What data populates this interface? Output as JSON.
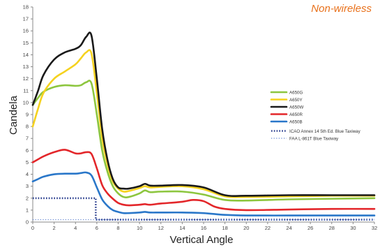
{
  "corner_label": "Non-wireless",
  "colors": {
    "axis": "#888888",
    "tick_text": "#444444",
    "label_text": "#222222",
    "corner_label": "#e8701a"
  },
  "chart_data": {
    "type": "line",
    "title": "",
    "xlabel": "Vertical Angle",
    "ylabel": "Candela",
    "xlim": [
      0,
      32
    ],
    "ylim": [
      0,
      18
    ],
    "xticks": [
      0,
      2,
      4,
      6,
      8,
      10,
      12,
      14,
      16,
      18,
      20,
      22,
      24,
      26,
      28,
      30,
      32
    ],
    "yticks": [
      0,
      1,
      2,
      3,
      4,
      5,
      6,
      7,
      8,
      9,
      10,
      11,
      12,
      13,
      14,
      15,
      16,
      17,
      18
    ],
    "grid": false,
    "legend_position": "right",
    "series": [
      {
        "name": "A650G",
        "color": "#8dc63f",
        "style": "solid",
        "x": [
          0,
          0.5,
          1,
          2,
          3,
          4,
          4.5,
          5,
          5.5,
          6,
          6.5,
          7,
          7.5,
          8,
          8.5,
          9,
          10,
          10.5,
          11,
          12,
          14,
          16,
          18,
          20,
          24,
          28,
          32
        ],
        "y": [
          9.8,
          10.4,
          10.9,
          11.3,
          11.45,
          11.4,
          11.45,
          11.7,
          11.6,
          9.0,
          6.0,
          4.2,
          3.0,
          2.4,
          2.1,
          2.1,
          2.4,
          2.65,
          2.5,
          2.55,
          2.55,
          2.3,
          1.85,
          1.8,
          1.9,
          1.95,
          2.0
        ]
      },
      {
        "name": "A650Y",
        "color": "#f5d21f",
        "style": "solid",
        "x": [
          0,
          0.5,
          1,
          2,
          3,
          4,
          4.5,
          5,
          5.5,
          6,
          6.5,
          7,
          7.5,
          8,
          8.5,
          9,
          10,
          10.5,
          11,
          12,
          14,
          16,
          18,
          20,
          24,
          28,
          32
        ],
        "y": [
          8.0,
          9.5,
          10.8,
          12.0,
          12.6,
          13.2,
          13.7,
          14.2,
          14.1,
          10.8,
          7.0,
          4.8,
          3.4,
          2.8,
          2.55,
          2.6,
          2.85,
          3.0,
          2.9,
          2.95,
          3.0,
          2.75,
          2.15,
          2.1,
          2.15,
          2.2,
          2.2
        ]
      },
      {
        "name": "A650W",
        "color": "#1a1a1a",
        "style": "solid",
        "x": [
          0,
          0.5,
          1,
          2,
          3,
          4,
          4.5,
          5,
          5.5,
          6,
          6.5,
          7,
          7.5,
          8,
          8.5,
          9,
          10,
          10.5,
          11,
          12,
          14,
          16,
          18,
          20,
          24,
          28,
          32
        ],
        "y": [
          9.8,
          11.0,
          12.3,
          13.6,
          14.2,
          14.5,
          14.8,
          15.5,
          15.6,
          12.0,
          7.8,
          5.2,
          3.6,
          2.9,
          2.8,
          2.8,
          3.0,
          3.2,
          3.05,
          3.05,
          3.1,
          2.9,
          2.25,
          2.2,
          2.25,
          2.25,
          2.25
        ]
      },
      {
        "name": "A650R",
        "color": "#e3262a",
        "style": "solid",
        "x": [
          0,
          0.5,
          1,
          2,
          3,
          4,
          4.5,
          5,
          5.5,
          6,
          6.5,
          7,
          7.5,
          8,
          8.5,
          9,
          10,
          10.5,
          11,
          12,
          14,
          15,
          16,
          17,
          18,
          20,
          24,
          28,
          32
        ],
        "y": [
          5.0,
          5.25,
          5.5,
          5.85,
          6.05,
          5.75,
          5.75,
          5.85,
          5.7,
          4.5,
          3.1,
          2.4,
          1.95,
          1.6,
          1.45,
          1.4,
          1.45,
          1.5,
          1.45,
          1.55,
          1.7,
          1.85,
          1.75,
          1.3,
          1.1,
          1.0,
          1.05,
          1.1,
          1.1
        ]
      },
      {
        "name": "A650B",
        "color": "#2a77c9",
        "style": "solid",
        "x": [
          0,
          0.5,
          1,
          2,
          3,
          4,
          4.5,
          5,
          5.5,
          6,
          6.5,
          7,
          7.5,
          8,
          8.5,
          9,
          10,
          10.5,
          11,
          12,
          14,
          16,
          18,
          20,
          24,
          28,
          32
        ],
        "y": [
          3.4,
          3.6,
          3.8,
          4.0,
          4.05,
          4.05,
          4.1,
          4.15,
          3.9,
          2.9,
          1.9,
          1.35,
          1.0,
          0.85,
          0.75,
          0.75,
          0.8,
          0.85,
          0.8,
          0.8,
          0.8,
          0.75,
          0.6,
          0.55,
          0.55,
          0.55,
          0.55
        ]
      },
      {
        "name": "ICAO Annex 14 5th Ed. Blue Taxiway",
        "color": "#2b3f8f",
        "style": "dotted-heavy",
        "x": [
          0,
          5.9,
          5.9,
          32
        ],
        "y": [
          2.0,
          2.0,
          0.2,
          0.2
        ]
      },
      {
        "name": "FAA L-861T Blue Taxiway",
        "color": "#5a7fd0",
        "style": "dotted-light",
        "x": [
          0,
          32
        ],
        "y": [
          0.2,
          0.2
        ]
      }
    ]
  }
}
